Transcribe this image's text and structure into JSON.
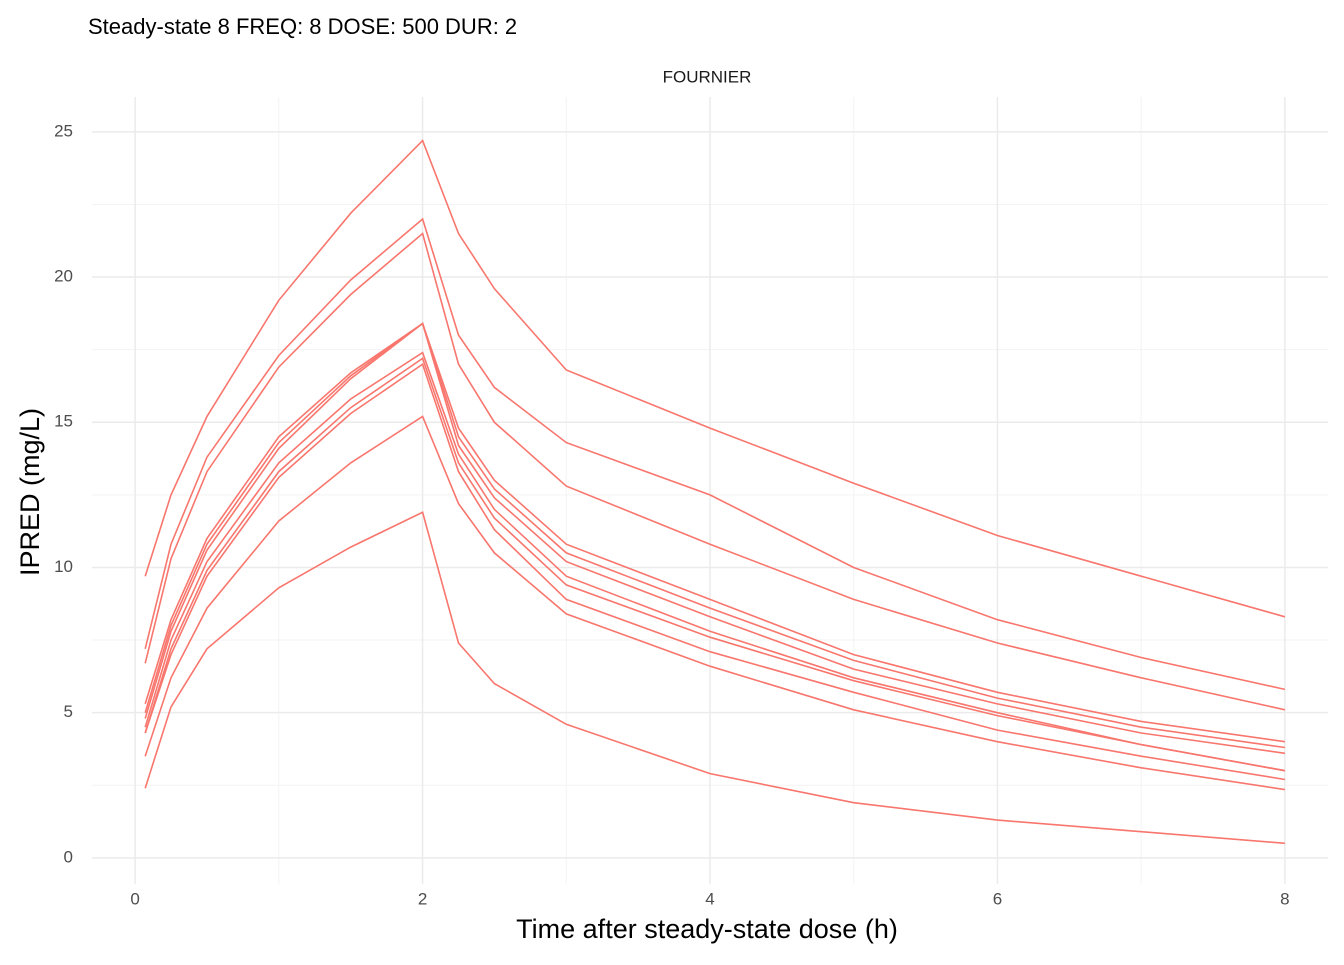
{
  "chart_data": {
    "type": "line",
    "title": "Steady-state 8 FREQ: 8 DOSE: 500 DUR: 2",
    "facet_label": "FOURNIER",
    "x_label": "Time after steady-state dose (h)",
    "y_label": "IPRED (mg/L)",
    "x": [
      0.07,
      0.25,
      0.5,
      1,
      1.5,
      2,
      2.25,
      2.5,
      3,
      4,
      5,
      6,
      7,
      8
    ],
    "series": [
      {
        "color": "#F8766D",
        "values": [
          9.7,
          12.5,
          15.2,
          19.2,
          22.2,
          24.7,
          21.5,
          19.6,
          16.8,
          14.8,
          12.9,
          11.1,
          9.7,
          8.3
        ]
      },
      {
        "color": "#F8766D",
        "values": [
          7.2,
          10.8,
          13.8,
          17.3,
          19.9,
          22.0,
          18.0,
          16.2,
          14.3,
          12.5,
          10.0,
          8.2,
          6.9,
          5.8
        ]
      },
      {
        "color": "#F8766D",
        "values": [
          6.7,
          10.3,
          13.3,
          16.9,
          19.4,
          21.5,
          17.0,
          15.0,
          12.8,
          10.8,
          8.9,
          7.4,
          6.2,
          5.1
        ]
      },
      {
        "color": "#F8766D",
        "values": [
          5.3,
          8.2,
          11.0,
          14.5,
          16.7,
          18.4,
          14.8,
          13.0,
          10.8,
          8.9,
          7.0,
          5.7,
          4.7,
          4.0
        ]
      },
      {
        "color": "#F8766D",
        "values": [
          5.0,
          8.0,
          10.8,
          14.3,
          16.6,
          18.4,
          14.5,
          12.7,
          10.5,
          8.6,
          6.8,
          5.5,
          4.5,
          3.8
        ]
      },
      {
        "color": "#F8766D",
        "values": [
          4.8,
          7.8,
          10.6,
          14.1,
          16.5,
          18.4,
          14.2,
          12.4,
          10.2,
          8.3,
          6.5,
          5.3,
          4.3,
          3.6
        ]
      },
      {
        "color": "#F8766D",
        "values": [
          4.5,
          7.5,
          10.2,
          13.6,
          15.8,
          17.4,
          13.9,
          12.0,
          9.7,
          7.8,
          6.2,
          5.0,
          3.9,
          3.0
        ]
      },
      {
        "color": "#F8766D",
        "values": [
          4.3,
          7.2,
          9.9,
          13.3,
          15.5,
          17.2,
          13.6,
          11.7,
          9.4,
          7.6,
          6.1,
          4.9,
          3.9,
          3.0
        ]
      },
      {
        "color": "#F8766D",
        "values": [
          4.3,
          7.0,
          9.7,
          13.1,
          15.3,
          17.0,
          13.3,
          11.3,
          8.9,
          7.1,
          5.7,
          4.4,
          3.5,
          2.7
        ]
      },
      {
        "color": "#F8766D",
        "values": [
          3.5,
          6.2,
          8.6,
          11.6,
          13.6,
          15.2,
          12.2,
          10.5,
          8.4,
          6.6,
          5.1,
          4.0,
          3.1,
          2.35
        ]
      },
      {
        "color": "#F8766D",
        "values": [
          2.4,
          5.2,
          7.2,
          9.3,
          10.7,
          11.9,
          7.4,
          6.0,
          4.6,
          2.9,
          1.9,
          1.3,
          0.9,
          0.5
        ]
      }
    ],
    "xlim": [
      -0.3,
      8.3
    ],
    "ylim": [
      -0.9,
      26.2
    ],
    "xticks": [
      0,
      2,
      4,
      6,
      8
    ],
    "yticks": [
      0,
      5,
      10,
      15,
      20,
      25
    ],
    "grid": true
  }
}
